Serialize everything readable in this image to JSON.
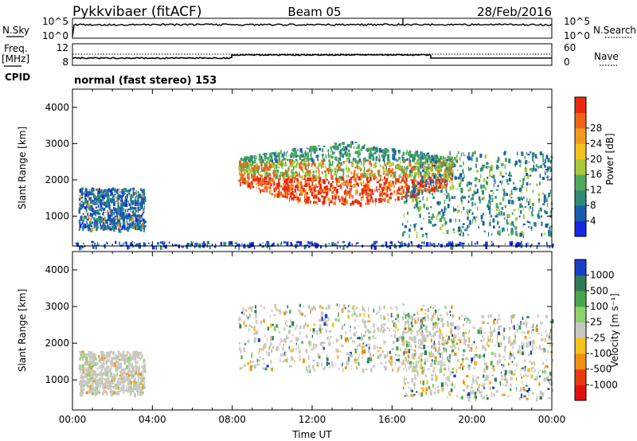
{
  "header": {
    "station": "Pykkvibaer (fitACF)",
    "beam": "Beam 05",
    "date": "28/Feb/2016"
  },
  "nsky_panel": {
    "left_label": "N.Sky",
    "left_ticks": [
      "10^5",
      "10^0"
    ],
    "right_label": "N.Search",
    "right_ticks": [
      "10^5",
      "10^0"
    ]
  },
  "freq_panel": {
    "left_label_1": "Freq.",
    "left_label_2": "[MHz]",
    "left_ticks": [
      "12",
      "8"
    ],
    "right_label": "Nave",
    "right_ticks": [
      "60",
      "0"
    ]
  },
  "cpid": {
    "label": "CPID",
    "text": "normal (fast stereo) 153"
  },
  "chart_data": [
    {
      "type": "heatmap",
      "title": "",
      "xlabel": "",
      "ylabel": "Slant Range [km]",
      "xlim": [
        0,
        24
      ],
      "ylim": [
        180,
        4500
      ],
      "x_ticks": [],
      "y_ticks": [
        "1000",
        "2000",
        "3000",
        "4000"
      ],
      "colorbar": {
        "label": "Power [dB]",
        "ticks": [
          "4",
          "8",
          "12",
          "16",
          "20",
          "24",
          "28"
        ],
        "colors": [
          "#1528e6",
          "#1a5cb0",
          "#2f8a78",
          "#4eaa5a",
          "#a9c93a",
          "#f2c21e",
          "#f39a1c",
          "#ef6418",
          "#ea2a10"
        ]
      },
      "regions": [
        {
          "t0": 0.3,
          "t1": 3.6,
          "r0": 650,
          "r1": 1800,
          "level": "low-mid"
        },
        {
          "t0": 8.3,
          "t1": 19.0,
          "r0": 1300,
          "r1": 3100,
          "level": "high"
        },
        {
          "t0": 16.5,
          "t1": 24.0,
          "r0": 500,
          "r1": 2800,
          "level": "mid"
        },
        {
          "t0": 0.0,
          "t1": 24.0,
          "r0": 180,
          "r1": 320,
          "level": "low"
        }
      ]
    },
    {
      "type": "heatmap",
      "title": "",
      "xlabel": "Time UT",
      "ylabel": "Slant Range [km]",
      "xlim": [
        0,
        24
      ],
      "ylim": [
        180,
        4500
      ],
      "x_ticks": [
        "00:00",
        "04:00",
        "08:00",
        "12:00",
        "16:00",
        "20:00",
        "00:00"
      ],
      "y_ticks": [
        "1000",
        "2000",
        "3000",
        "4000"
      ],
      "colorbar": {
        "label": "Velocity [m s⁻¹]",
        "ticks": [
          "1000",
          "500",
          "100",
          "25",
          "-25",
          "-100",
          "-500",
          "-1000"
        ],
        "colors": [
          "#1840c8",
          "#2f7a58",
          "#45a84a",
          "#8ed36a",
          "#c8c8c2",
          "#f6c21e",
          "#f0900f",
          "#ea3a12",
          "#e41010"
        ]
      },
      "regions": [
        {
          "t0": 0.3,
          "t1": 3.6,
          "r0": 650,
          "r1": 1800,
          "level": "near-zero"
        },
        {
          "t0": 8.3,
          "t1": 19.0,
          "r0": 1300,
          "r1": 3100,
          "level": "mixed"
        },
        {
          "t0": 16.5,
          "t1": 24.0,
          "r0": 500,
          "r1": 2800,
          "level": "mixed"
        }
      ]
    }
  ]
}
